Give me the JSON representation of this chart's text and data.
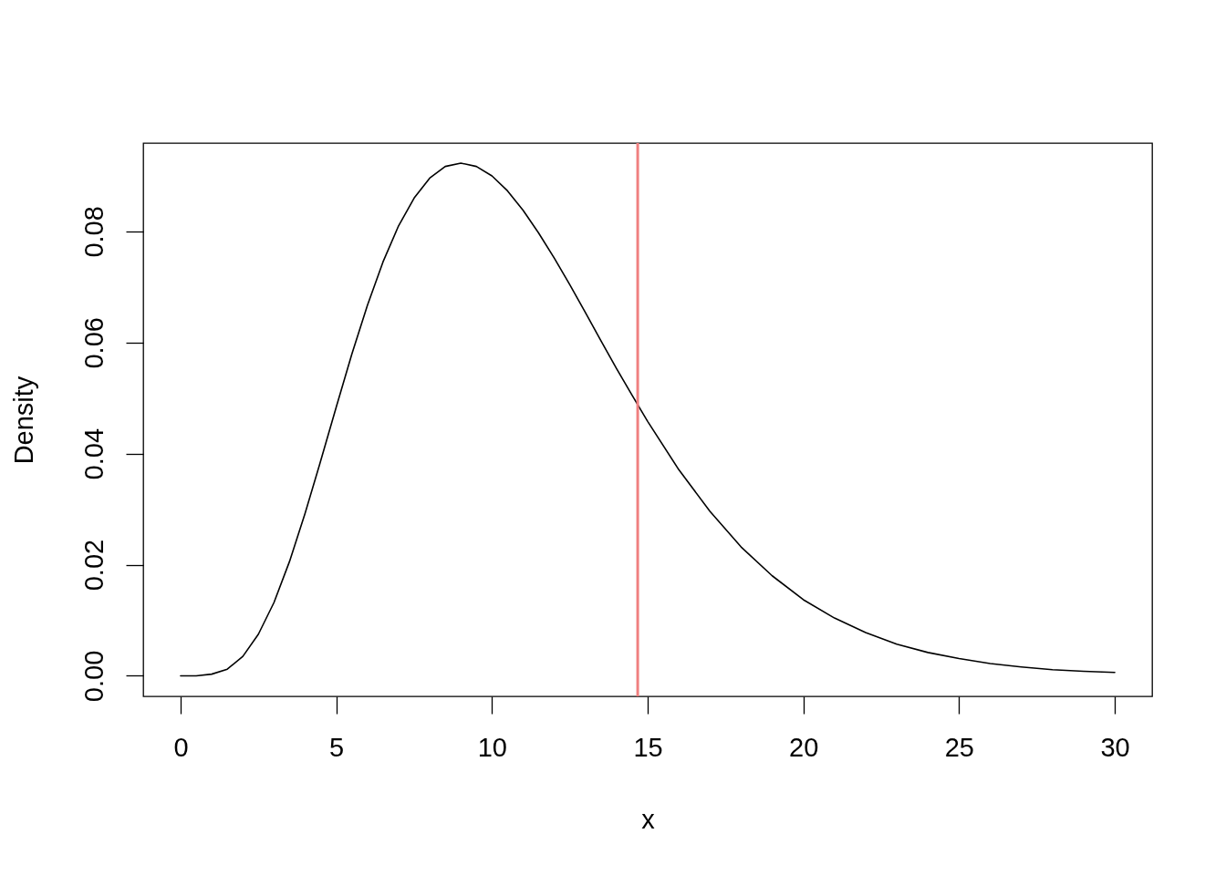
{
  "chart_data": {
    "type": "line",
    "xlabel": "x",
    "ylabel": "Density",
    "x": [
      0,
      0.5,
      1,
      1.5,
      2,
      2.5,
      3,
      3.5,
      4,
      4.5,
      5,
      5.5,
      6,
      6.5,
      7,
      7.5,
      8,
      8.5,
      9,
      9.5,
      10,
      10.5,
      11,
      11.5,
      12,
      12.5,
      13,
      13.5,
      14,
      14.5,
      15,
      16,
      17,
      18,
      19,
      20,
      21,
      22,
      23,
      24,
      25,
      26,
      27,
      28,
      29,
      30
    ],
    "series": [
      {
        "color": "#000000",
        "values": [
          0,
          0,
          0.0003,
          0.0012,
          0.0035,
          0.0075,
          0.0132,
          0.0206,
          0.0293,
          0.0387,
          0.0484,
          0.0579,
          0.0667,
          0.0745,
          0.081,
          0.086,
          0.0896,
          0.0917,
          0.0923,
          0.0917,
          0.09,
          0.0873,
          0.0838,
          0.0797,
          0.0752,
          0.0704,
          0.0654,
          0.0603,
          0.0553,
          0.0505,
          0.0458,
          0.0371,
          0.0296,
          0.0232,
          0.018,
          0.0137,
          0.0104,
          0.0078,
          0.0057,
          0.0042,
          0.0031,
          0.0022,
          0.0016,
          0.0011,
          0.0008,
          0.0006
        ]
      }
    ],
    "xlim": [
      -1.2,
      31.2
    ],
    "ylim": [
      -0.0037,
      0.0959
    ],
    "xticks": [
      0,
      5,
      10,
      15,
      20,
      25,
      30
    ],
    "yticks": [
      {
        "value": 0,
        "label": "0.00"
      },
      0.02,
      0.04,
      0.06,
      0.08
    ],
    "line_style": "solid",
    "ref_lines": [
      {
        "axis": "x",
        "value": 14.68,
        "color": "#f08080"
      }
    ]
  }
}
